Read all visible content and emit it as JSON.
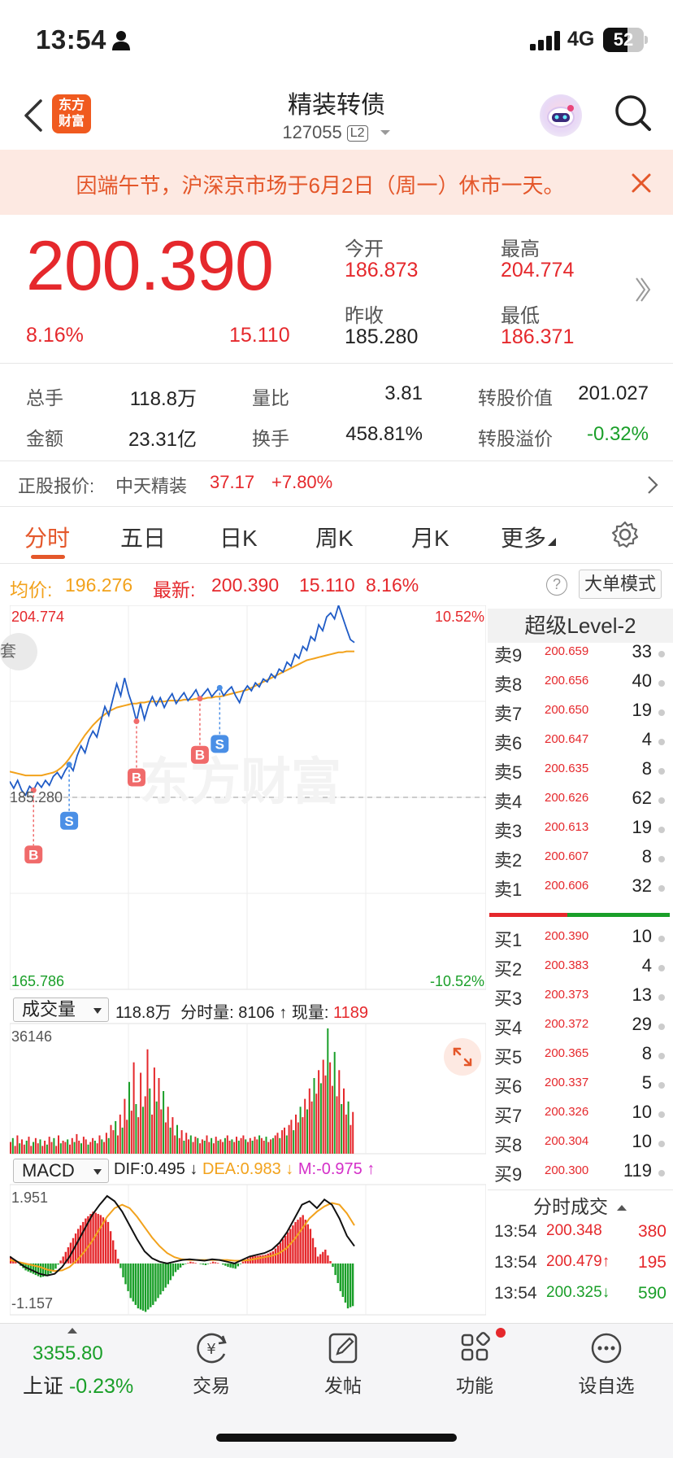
{
  "status_bar": {
    "time": "13:54",
    "network": "4G",
    "battery": "52"
  },
  "header": {
    "logo_text": "东方财富",
    "title": "精装转债",
    "code": "127055",
    "level_badge": "L2"
  },
  "notice": {
    "text": "因端午节，沪深京市场于6月2日（周一）休市一天。"
  },
  "quote": {
    "price": "200.390",
    "change_pct": "8.16%",
    "change": "15.110",
    "open_label": "今开",
    "open": "186.873",
    "high_label": "最高",
    "high": "204.774",
    "prev_close_label": "昨收",
    "prev_close": "185.280",
    "low_label": "最低",
    "low": "186.371"
  },
  "stats": {
    "volume_label": "总手",
    "volume": "118.8万",
    "vol_ratio_label": "量比",
    "vol_ratio": "3.81",
    "conv_value_label": "转股价值",
    "conv_value": "201.027",
    "amount_label": "金额",
    "amount": "23.31亿",
    "turnover_label": "换手",
    "turnover": "458.81%",
    "premium_label": "转股溢价",
    "premium": "-0.32%"
  },
  "underlying": {
    "label": "正股报价:",
    "name": "中天精装",
    "price": "37.17",
    "change": "+7.80%"
  },
  "tabs": [
    "分时",
    "五日",
    "日K",
    "周K",
    "月K",
    "更多"
  ],
  "info_row": {
    "avg_label": "均价:",
    "avg": "196.276",
    "latest_label": "最新:",
    "latest": "200.390",
    "chg": "15.110",
    "pct": "8.16%",
    "big_order_mode": "大单模式"
  },
  "chart_data": [
    {
      "type": "line",
      "series": [
        {
          "name": "price",
          "color": "#1f5bc6"
        },
        {
          "name": "avg",
          "color": "#f2a21c"
        }
      ],
      "price_y": [
        186.9,
        186.2,
        187.0,
        186.0,
        185.5,
        186.4,
        186.0,
        186.8,
        186.3,
        187.0,
        186.5,
        187.4,
        187.8,
        187.2,
        188.0,
        188.6,
        188.0,
        189.5,
        190.5,
        189.8,
        191.2,
        192.0,
        191.4,
        193.0,
        194.5,
        193.6,
        195.2,
        196.8,
        195.6,
        197.4,
        195.8,
        194.6,
        193.0,
        194.8,
        193.2,
        194.6,
        195.5,
        194.6,
        195.4,
        194.4,
        195.2,
        195.8,
        194.8,
        195.4,
        195.9,
        195.1,
        195.6,
        196.2,
        195.3,
        195.8,
        196.3,
        195.5,
        196.0,
        196.4,
        195.6,
        196.1,
        196.5,
        195.6,
        194.9,
        196.0,
        196.6,
        196.1,
        196.9,
        196.5,
        197.3,
        197.0,
        197.8,
        197.4,
        198.3,
        198.0,
        199.0,
        198.6,
        199.8,
        199.4,
        200.6,
        200.2,
        201.6,
        201.2,
        202.8,
        202.2,
        203.6,
        204.0,
        203.4,
        204.774,
        203.6,
        202.4,
        201.3,
        201.0
      ],
      "avg_y": [
        187.9,
        187.8,
        187.7,
        187.6,
        187.5,
        187.5,
        187.5,
        187.5,
        187.5,
        187.6,
        187.7,
        187.8,
        188.0,
        188.3,
        188.7,
        189.2,
        189.8,
        190.4,
        191.0,
        191.6,
        192.1,
        192.6,
        193.0,
        193.4,
        193.7,
        194.0,
        194.2,
        194.4,
        194.5,
        194.6,
        194.7,
        194.8,
        194.8,
        194.9,
        194.9,
        195.0,
        195.0,
        195.0,
        195.0,
        195.0,
        195.1,
        195.1,
        195.1,
        195.1,
        195.2,
        195.2,
        195.2,
        195.3,
        195.3,
        195.3,
        195.4,
        195.4,
        195.5,
        195.5,
        195.6,
        195.7,
        195.8,
        195.9,
        196.0,
        196.1,
        196.2,
        196.4,
        196.6,
        196.8,
        197.0,
        197.2,
        197.4,
        197.6,
        197.8,
        198.0,
        198.2,
        198.4,
        198.6,
        198.8,
        199.0,
        199.2,
        199.3,
        199.4,
        199.5,
        199.6,
        199.7,
        199.8,
        199.9,
        200.0,
        200.0,
        200.1,
        200.1,
        200.1
      ],
      "y_max": "204.774",
      "y_min": "165.786",
      "baseline": "185.280",
      "pct_max": "10.52%",
      "pct_min": "-10.52%",
      "markers": [
        {
          "label": "B",
          "at_index": 6
        },
        {
          "label": "S",
          "at_index": 15
        },
        {
          "label": "B",
          "at_index": 32
        },
        {
          "label": "B",
          "at_index": 48
        },
        {
          "label": "S",
          "at_index": 53
        }
      ],
      "watermark": "东方财富",
      "left_badge": "套"
    },
    {
      "type": "bar",
      "title": "成交量",
      "summary": "118.8万",
      "minute_vol_label": "分时量:",
      "minute_vol": "8106",
      "current_vol_label": "现量:",
      "current_vol": "1189",
      "y_max": "36146",
      "values": [
        9,
        12,
        6,
        14,
        8,
        11,
        7,
        10,
        13,
        6,
        9,
        12,
        8,
        11,
        6,
        10,
        7,
        13,
        9,
        12,
        6,
        14,
        8,
        10,
        9,
        11,
        7,
        12,
        9,
        15,
        10,
        8,
        13,
        11,
        7,
        9,
        12,
        10,
        8,
        14,
        11,
        9,
        16,
        12,
        22,
        18,
        25,
        14,
        30,
        20,
        42,
        26,
        55,
        33,
        70,
        38,
        28,
        62,
        36,
        44,
        80,
        50,
        30,
        66,
        40,
        58,
        34,
        48,
        24,
        36,
        20,
        28,
        14,
        22,
        12,
        18,
        10,
        16,
        11,
        14,
        9,
        13,
        12,
        8,
        11,
        10,
        14,
        9,
        12,
        8,
        13,
        10,
        11,
        9,
        12,
        14,
        10,
        11,
        9,
        13,
        10,
        12,
        14,
        11,
        9,
        12,
        10,
        13,
        11,
        14,
        12,
        10,
        13,
        9,
        11,
        12,
        14,
        16,
        12,
        18,
        20,
        14,
        22,
        26,
        18,
        30,
        24,
        36,
        28,
        42,
        34,
        50,
        40,
        58,
        46,
        64,
        54,
        72,
        60,
        96,
        70,
        52,
        78,
        44,
        64,
        38,
        50,
        30,
        40,
        22,
        32
      ],
      "colors_red": "#e5282c",
      "colors_green": "#1a9f29"
    },
    {
      "type": "line",
      "title": "MACD",
      "dif_label": "DIF:",
      "dif": "0.495",
      "dea_label": "DEA:",
      "dea": "0.983",
      "m_label": "M:",
      "m": "-0.975",
      "y_max": "1.951",
      "y_min": "-1.157",
      "dif_y": [
        0.2,
        0.05,
        -0.1,
        -0.2,
        -0.3,
        -0.35,
        -0.3,
        -0.1,
        0.2,
        0.6,
        1.0,
        1.4,
        1.7,
        1.95,
        1.8,
        1.5,
        1.1,
        0.7,
        0.35,
        0.15,
        0.05,
        0.0,
        0.05,
        0.1,
        0.12,
        0.1,
        0.08,
        0.12,
        0.1,
        0.05,
        0.0,
        0.1,
        0.2,
        0.25,
        0.3,
        0.4,
        0.6,
        0.9,
        1.3,
        1.7,
        1.8,
        1.6,
        1.85,
        1.7,
        1.3,
        0.8,
        0.5
      ],
      "dea_y": [
        0.1,
        0.05,
        0.0,
        -0.05,
        -0.1,
        -0.18,
        -0.22,
        -0.2,
        -0.1,
        0.1,
        0.35,
        0.65,
        1.0,
        1.35,
        1.6,
        1.7,
        1.6,
        1.35,
        1.05,
        0.75,
        0.5,
        0.3,
        0.18,
        0.12,
        0.1,
        0.1,
        0.1,
        0.1,
        0.1,
        0.1,
        0.08,
        0.08,
        0.1,
        0.14,
        0.18,
        0.22,
        0.3,
        0.45,
        0.7,
        1.0,
        1.3,
        1.5,
        1.65,
        1.75,
        1.7,
        1.45,
        1.1
      ],
      "hist_y": [
        0.2,
        0.0,
        -0.2,
        -0.3,
        -0.4,
        -0.35,
        -0.15,
        0.2,
        0.6,
        1.0,
        1.3,
        1.5,
        1.4,
        1.2,
        0.4,
        -0.4,
        -1.0,
        -1.3,
        -1.4,
        -1.2,
        -0.9,
        -0.6,
        -0.25,
        -0.05,
        0.05,
        0.0,
        -0.05,
        0.05,
        0.0,
        -0.1,
        -0.15,
        0.05,
        0.2,
        0.22,
        0.25,
        0.35,
        0.6,
        0.9,
        1.2,
        1.4,
        1.0,
        0.2,
        0.4,
        -0.1,
        -0.8,
        -1.3,
        -1.2
      ]
    }
  ],
  "order_book": {
    "title": "超级Level-2",
    "asks": [
      {
        "name": "卖9",
        "price": "200.659",
        "vol": "33"
      },
      {
        "name": "卖8",
        "price": "200.656",
        "vol": "40"
      },
      {
        "name": "卖7",
        "price": "200.650",
        "vol": "19"
      },
      {
        "name": "卖6",
        "price": "200.647",
        "vol": "4"
      },
      {
        "name": "卖5",
        "price": "200.635",
        "vol": "8"
      },
      {
        "name": "卖4",
        "price": "200.626",
        "vol": "62"
      },
      {
        "name": "卖3",
        "price": "200.613",
        "vol": "19"
      },
      {
        "name": "卖2",
        "price": "200.607",
        "vol": "8"
      },
      {
        "name": "卖1",
        "price": "200.606",
        "vol": "32"
      }
    ],
    "bids": [
      {
        "name": "买1",
        "price": "200.390",
        "vol": "10"
      },
      {
        "name": "买2",
        "price": "200.383",
        "vol": "4"
      },
      {
        "name": "买3",
        "price": "200.373",
        "vol": "13"
      },
      {
        "name": "买4",
        "price": "200.372",
        "vol": "29"
      },
      {
        "name": "买5",
        "price": "200.365",
        "vol": "8"
      },
      {
        "name": "买6",
        "price": "200.337",
        "vol": "5"
      },
      {
        "name": "买7",
        "price": "200.326",
        "vol": "10"
      },
      {
        "name": "买8",
        "price": "200.304",
        "vol": "10"
      },
      {
        "name": "买9",
        "price": "200.300",
        "vol": "119"
      }
    ],
    "ticks_title": "分时成交",
    "ticks": [
      {
        "time": "13:54",
        "price": "200.348",
        "arrow": "",
        "vol": "380",
        "color": "red"
      },
      {
        "time": "13:54",
        "price": "200.479",
        "arrow": "↑",
        "vol": "195",
        "color": "red"
      },
      {
        "time": "13:54",
        "price": "200.325",
        "arrow": "↓",
        "vol": "590",
        "color": "green"
      }
    ]
  },
  "bottom_bar": {
    "index_value": "3355.80",
    "index_name": "上证",
    "index_change": "-0.23%",
    "items": [
      "交易",
      "发帖",
      "功能",
      "设自选"
    ]
  }
}
